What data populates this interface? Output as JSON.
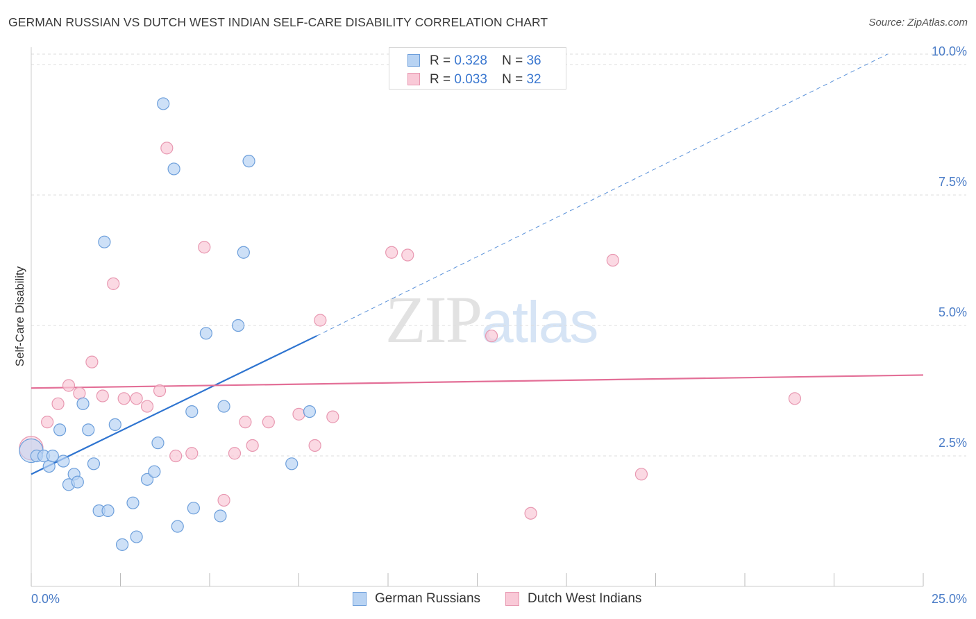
{
  "header": {
    "title": "GERMAN RUSSIAN VS DUTCH WEST INDIAN SELF-CARE DISABILITY CORRELATION CHART",
    "source": "Source: ZipAtlas.com"
  },
  "watermark": {
    "zip": "ZIP",
    "atlas": "atlas"
  },
  "legend": {
    "r_label": "R =",
    "n_label": "N =",
    "rows": [
      {
        "r": "0.328",
        "n": "36"
      },
      {
        "r": "0.033",
        "n": "32"
      }
    ]
  },
  "bottom_legend": {
    "series1": "German Russians",
    "series2": "Dutch West Indians"
  },
  "colors": {
    "blue_fill": "#b8d3f3",
    "blue_stroke": "#6d9fdb",
    "blue_line": "#2e74d0",
    "pink_fill": "#f9c9d7",
    "pink_stroke": "#e898b1",
    "pink_line": "#e36f97",
    "axis_text": "#4a7cc7",
    "grid": "#dddddd"
  },
  "chart_data": {
    "type": "scatter",
    "title": "GERMAN RUSSIAN VS DUTCH WEST INDIAN SELF-CARE DISABILITY CORRELATION CHART",
    "xlabel": "",
    "ylabel": "Self-Care Disability",
    "xlim": [
      0,
      25
    ],
    "ylim": [
      0,
      10.2
    ],
    "x_tick_labels": [
      "0.0%",
      "25.0%"
    ],
    "y_ticks": [
      2.5,
      5.0,
      7.5,
      10.0
    ],
    "y_tick_labels": [
      "2.5%",
      "5.0%",
      "7.5%",
      "10.0%"
    ],
    "legend_position": "top-center",
    "series": [
      {
        "name": "German Russians",
        "r": 0.328,
        "n": 36,
        "trend": {
          "x0": 0,
          "y0": 2.15,
          "x1": 8.0,
          "y1": 4.8,
          "dashed_to_x": 24.0,
          "dashed_to_y": 10.2
        },
        "points": [
          [
            0.0,
            2.6
          ],
          [
            0.15,
            2.5
          ],
          [
            0.35,
            2.5
          ],
          [
            0.5,
            2.3
          ],
          [
            0.6,
            2.5
          ],
          [
            0.8,
            3.0
          ],
          [
            0.9,
            2.4
          ],
          [
            1.05,
            1.95
          ],
          [
            1.2,
            2.15
          ],
          [
            1.3,
            2.0
          ],
          [
            1.45,
            3.5
          ],
          [
            1.6,
            3.0
          ],
          [
            1.75,
            2.35
          ],
          [
            1.9,
            1.45
          ],
          [
            2.05,
            6.6
          ],
          [
            2.15,
            1.45
          ],
          [
            2.35,
            3.1
          ],
          [
            2.55,
            0.8
          ],
          [
            2.85,
            1.6
          ],
          [
            2.95,
            0.95
          ],
          [
            3.25,
            2.05
          ],
          [
            3.45,
            2.2
          ],
          [
            3.55,
            2.75
          ],
          [
            3.7,
            9.25
          ],
          [
            4.0,
            8.0
          ],
          [
            4.1,
            1.15
          ],
          [
            4.5,
            3.35
          ],
          [
            4.55,
            1.5
          ],
          [
            4.9,
            4.85
          ],
          [
            5.3,
            1.35
          ],
          [
            5.4,
            3.45
          ],
          [
            5.8,
            5.0
          ],
          [
            5.95,
            6.4
          ],
          [
            6.1,
            8.15
          ],
          [
            7.3,
            2.35
          ],
          [
            7.8,
            3.35
          ]
        ]
      },
      {
        "name": "Dutch West Indians",
        "r": 0.033,
        "n": 32,
        "trend": {
          "x0": 0,
          "y0": 3.8,
          "x1": 25.0,
          "y1": 4.05
        },
        "points": [
          [
            0.0,
            2.65
          ],
          [
            0.45,
            3.15
          ],
          [
            0.75,
            3.5
          ],
          [
            1.05,
            3.85
          ],
          [
            1.35,
            3.7
          ],
          [
            1.7,
            4.3
          ],
          [
            2.0,
            3.65
          ],
          [
            2.3,
            5.8
          ],
          [
            2.6,
            3.6
          ],
          [
            2.95,
            3.6
          ],
          [
            3.25,
            3.45
          ],
          [
            3.6,
            3.75
          ],
          [
            3.8,
            8.4
          ],
          [
            4.05,
            2.5
          ],
          [
            4.5,
            2.55
          ],
          [
            4.85,
            6.5
          ],
          [
            5.4,
            1.65
          ],
          [
            5.7,
            2.55
          ],
          [
            6.0,
            3.15
          ],
          [
            6.2,
            2.7
          ],
          [
            6.65,
            3.15
          ],
          [
            7.5,
            3.3
          ],
          [
            7.95,
            2.7
          ],
          [
            8.1,
            5.1
          ],
          [
            8.45,
            3.25
          ],
          [
            10.1,
            6.4
          ],
          [
            10.55,
            6.35
          ],
          [
            12.9,
            4.8
          ],
          [
            14.0,
            1.4
          ],
          [
            16.3,
            6.25
          ],
          [
            17.1,
            2.15
          ],
          [
            21.4,
            3.6
          ]
        ]
      }
    ]
  }
}
